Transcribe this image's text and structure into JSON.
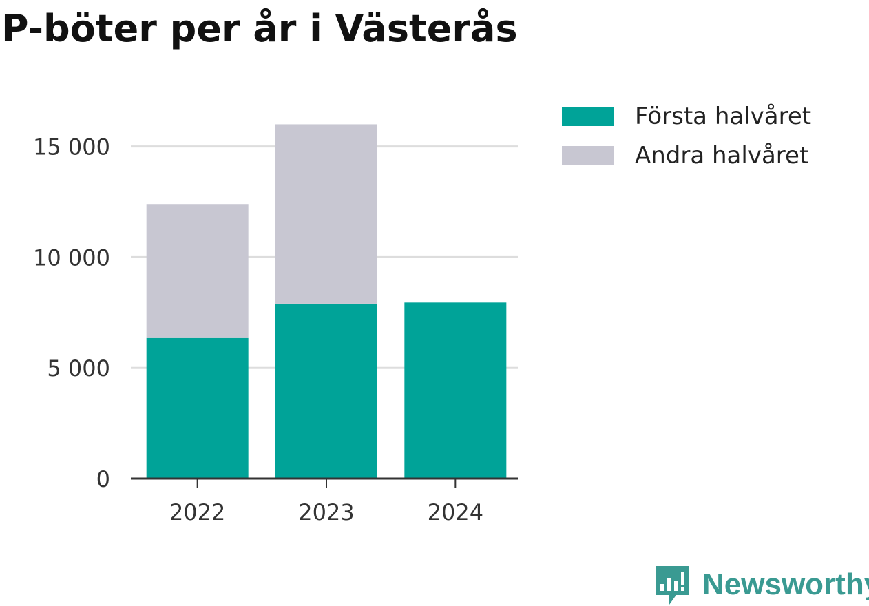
{
  "chart_data": {
    "type": "bar",
    "stacked": true,
    "title": "P-böter per år i Västerås",
    "categories": [
      "2022",
      "2023",
      "2024"
    ],
    "series": [
      {
        "name": "Första halvåret",
        "color": "#00a398",
        "values": [
          6350,
          7900,
          7950
        ]
      },
      {
        "name": "Andra halvåret",
        "color": "#c8c7d2",
        "values": [
          6050,
          8100,
          0
        ]
      }
    ],
    "ylim": [
      0,
      16500
    ],
    "yticks": [
      0,
      5000,
      10000,
      15000
    ],
    "ytick_labels": [
      "0",
      "5 000",
      "10 000",
      "15 000"
    ],
    "grid": true,
    "legend": "top-right"
  },
  "brand": {
    "name": "Newsworthy",
    "icon": "newsworthy-logo-icon",
    "color": "#3a9a92"
  }
}
